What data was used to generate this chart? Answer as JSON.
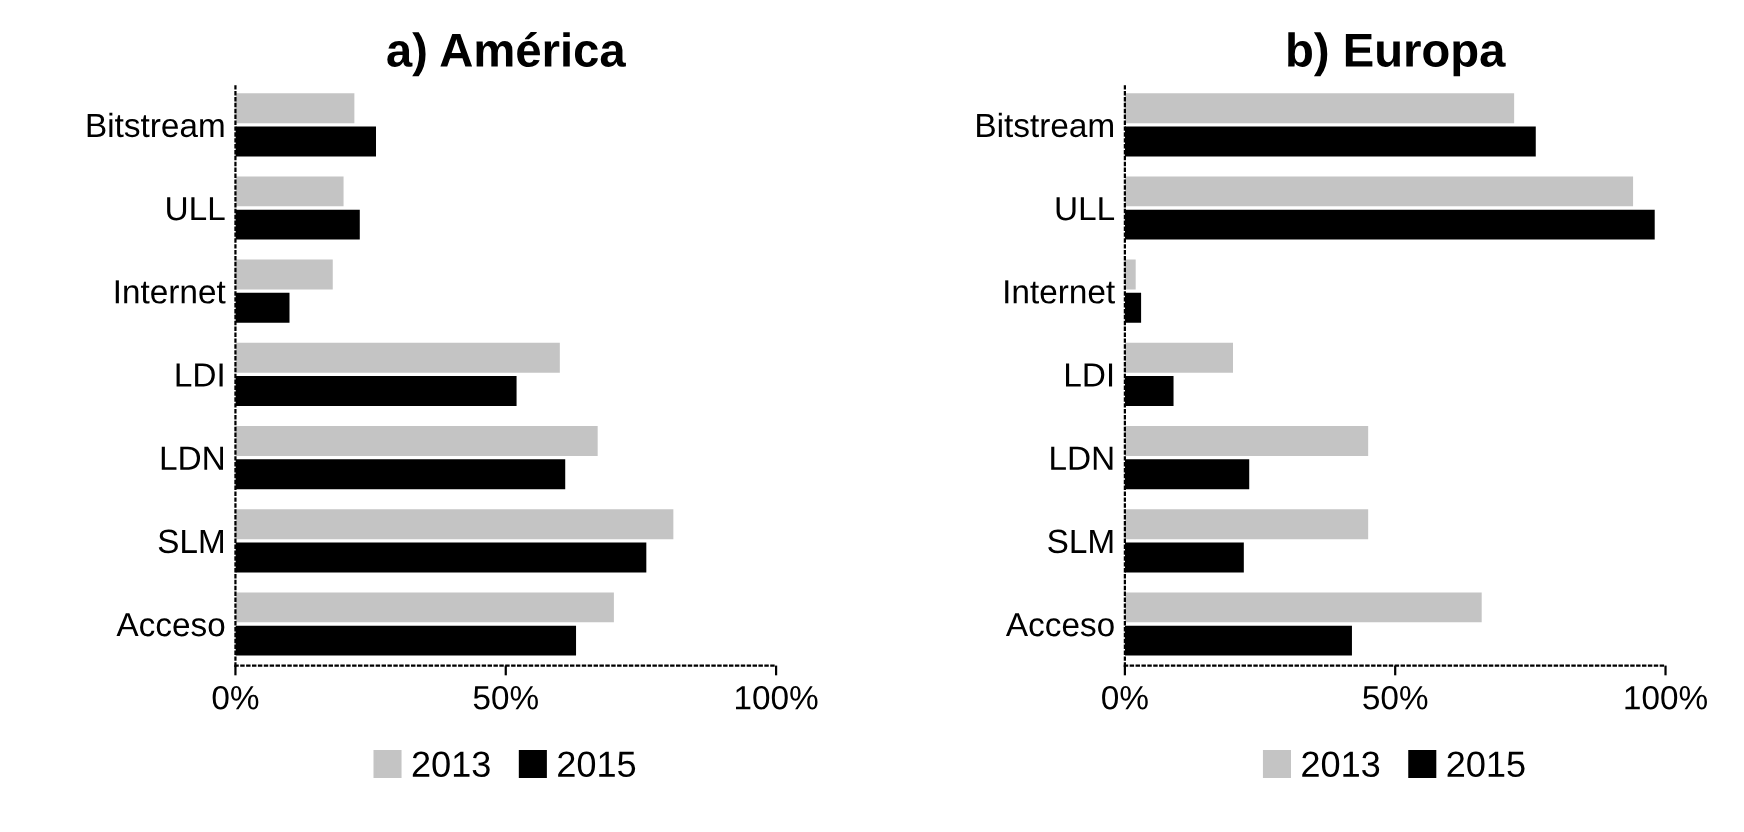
{
  "chart_data": [
    {
      "type": "bar",
      "orientation": "horizontal",
      "title": "a) América",
      "categories": [
        "Bitstream",
        "ULL",
        "Internet",
        "LDI",
        "LDN",
        "SLM",
        "Acceso"
      ],
      "series": [
        {
          "name": "2013",
          "color": "#c4c4c4",
          "values": [
            22,
            20,
            18,
            60,
            67,
            81,
            70
          ]
        },
        {
          "name": "2015",
          "color": "#000000",
          "values": [
            26,
            23,
            10,
            52,
            61,
            76,
            63
          ]
        }
      ],
      "xlim": [
        0,
        100
      ],
      "xticks": [
        {
          "value": 0,
          "label": "0%"
        },
        {
          "value": 50,
          "label": "50%"
        },
        {
          "value": 100,
          "label": "100%"
        }
      ],
      "grid": false,
      "legend": "bottom"
    },
    {
      "type": "bar",
      "orientation": "horizontal",
      "title": "b) Europa",
      "categories": [
        "Bitstream",
        "ULL",
        "Internet",
        "LDI",
        "LDN",
        "SLM",
        "Acceso"
      ],
      "series": [
        {
          "name": "2013",
          "color": "#c4c4c4",
          "values": [
            72,
            94,
            2,
            20,
            45,
            45,
            66
          ]
        },
        {
          "name": "2015",
          "color": "#000000",
          "values": [
            76,
            98,
            3,
            9,
            23,
            22,
            42
          ]
        }
      ],
      "xlim": [
        0,
        100
      ],
      "xticks": [
        {
          "value": 0,
          "label": "0%"
        },
        {
          "value": 50,
          "label": "50%"
        },
        {
          "value": 100,
          "label": "100%"
        }
      ],
      "grid": false,
      "legend": "bottom"
    }
  ]
}
